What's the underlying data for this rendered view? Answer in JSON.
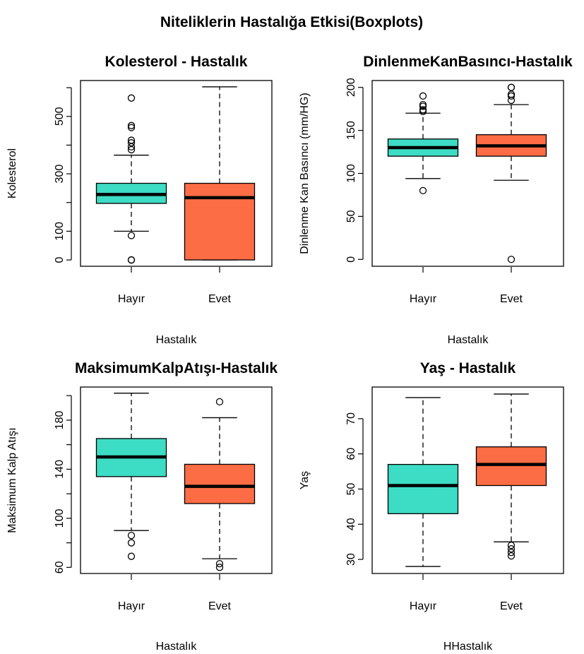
{
  "title": "Niteliklerin Hastalığa Etkisi(Boxplots)",
  "colors": {
    "hayir": "#3ddcc4",
    "evet": "#fc6c45",
    "median": "#000000",
    "stroke": "#000000"
  },
  "chart_data": [
    {
      "type": "boxplot",
      "title": "Kolesterol - Hastalık",
      "xlabel": "Hastalık",
      "ylabel": "Kolesterol",
      "categories": [
        "Hayır",
        "Evet"
      ],
      "ylim": [
        -22,
        625
      ],
      "yticks": [
        0,
        100,
        300,
        500
      ],
      "yminor": [
        200,
        400,
        600
      ],
      "boxes": [
        {
          "name": "Hayır",
          "whislo": 100,
          "q1": 197,
          "median": 228,
          "q3": 267,
          "whishi": 365,
          "outliers": [
            0,
            0,
            85,
            384,
            394,
            408,
            417,
            461,
            468,
            564
          ]
        },
        {
          "name": "Evet",
          "whislo": 0,
          "q1": 0,
          "median": 217,
          "q3": 267,
          "whishi": 603,
          "outliers": []
        }
      ]
    },
    {
      "type": "boxplot",
      "title": "DinlenmeKanBasıncı-Hastalık",
      "xlabel": "Hastalık",
      "ylabel": "Dinlenme Kan Basıncı (mm/HG)",
      "categories": [
        "Hayır",
        "Evet"
      ],
      "ylim": [
        -8,
        208
      ],
      "yticks": [
        0,
        50,
        100,
        150,
        200
      ],
      "yminor": [],
      "boxes": [
        {
          "name": "Hayır",
          "whislo": 94,
          "q1": 120,
          "median": 130,
          "q3": 140,
          "whishi": 170,
          "outliers": [
            80,
            172,
            174,
            178,
            180,
            190
          ]
        },
        {
          "name": "Evet",
          "whislo": 92,
          "q1": 120,
          "median": 132,
          "q3": 145,
          "whishi": 180,
          "outliers": [
            0,
            185,
            190,
            192,
            200,
            200
          ]
        }
      ]
    },
    {
      "type": "boxplot",
      "title": "MaksimumKalpAtışı-Hastalık",
      "xlabel": "Hastalık",
      "ylabel": "Maksimum Kalp Atışı",
      "categories": [
        "Hayır",
        "Evet"
      ],
      "ylim": [
        55,
        207
      ],
      "yticks": [
        60,
        100,
        140,
        180
      ],
      "yminor": [
        80,
        120,
        160,
        200
      ],
      "boxes": [
        {
          "name": "Hayır",
          "whislo": 90,
          "q1": 134,
          "median": 150,
          "q3": 165,
          "whishi": 202,
          "outliers": [
            69,
            80,
            86
          ]
        },
        {
          "name": "Evet",
          "whislo": 67,
          "q1": 112,
          "median": 126,
          "q3": 144,
          "whishi": 182,
          "outliers": [
            60,
            63,
            195
          ]
        }
      ]
    },
    {
      "type": "boxplot",
      "title": "Yaş - Hastalık",
      "xlabel": "HHastalık",
      "ylabel": "Yaş",
      "categories": [
        "Hayır",
        "Evet"
      ],
      "ylim": [
        26,
        79
      ],
      "yticks": [
        30,
        40,
        50,
        60,
        70
      ],
      "yminor": [],
      "boxes": [
        {
          "name": "Hayır",
          "whislo": 28,
          "q1": 43,
          "median": 51,
          "q3": 57,
          "whishi": 76,
          "outliers": []
        },
        {
          "name": "Evet",
          "whislo": 35,
          "q1": 51,
          "median": 57,
          "q3": 62,
          "whishi": 77,
          "outliers": [
            31,
            32,
            33,
            34
          ]
        }
      ]
    }
  ]
}
